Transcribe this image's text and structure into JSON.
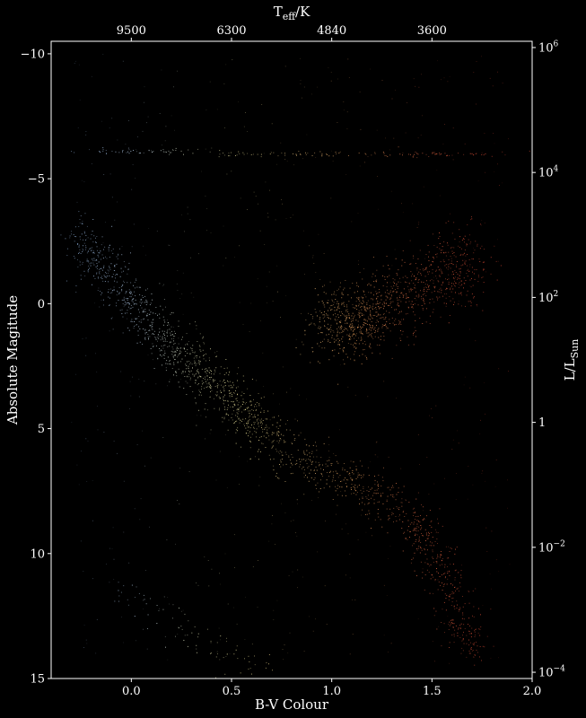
{
  "chart_data": {
    "type": "scatter",
    "title": "",
    "xlabel": "B-V Colour",
    "ylabel": "Absolute Magitude",
    "top_xlabel": "T",
    "top_xlabel_sub": "eff",
    "top_xlabel_suffix": "/K",
    "right_ylabel": "L/L",
    "right_ylabel_sub": "Sun",
    "xlim": [
      -0.4,
      2.0
    ],
    "ylim": [
      15,
      -10.5
    ],
    "y_inverted": true,
    "grid": false,
    "background": "#000000",
    "x_ticks": [
      {
        "value": 0.0,
        "label": "0.0"
      },
      {
        "value": 0.5,
        "label": "0.5"
      },
      {
        "value": 1.0,
        "label": "1.0"
      },
      {
        "value": 1.5,
        "label": "1.5"
      },
      {
        "value": 2.0,
        "label": "2.0"
      }
    ],
    "y_ticks": [
      {
        "value": -10,
        "label": "−10"
      },
      {
        "value": -5,
        "label": "−5"
      },
      {
        "value": 0,
        "label": "0"
      },
      {
        "value": 5,
        "label": "5"
      },
      {
        "value": 10,
        "label": "10"
      },
      {
        "value": 15,
        "label": "15"
      }
    ],
    "top_ticks": [
      {
        "value": 0.0,
        "label": "9500"
      },
      {
        "value": 0.5,
        "label": "6300"
      },
      {
        "value": 1.0,
        "label": "4840"
      },
      {
        "value": 1.5,
        "label": "3600"
      }
    ],
    "right_ticks": [
      {
        "value": -10.25,
        "base": "10",
        "exp": "6"
      },
      {
        "value": -5.25,
        "base": "10",
        "exp": "4"
      },
      {
        "value": -0.25,
        "base": "10",
        "exp": "2"
      },
      {
        "value": 4.75,
        "base": "1",
        "exp": ""
      },
      {
        "value": 9.75,
        "base": "10",
        "exp": "−2"
      },
      {
        "value": 14.75,
        "base": "10",
        "exp": "−4"
      }
    ],
    "series_regions": [
      {
        "region": "main-sequence",
        "color": "#b8d4f0",
        "points": [
          [
            -0.25,
            -2.5
          ],
          [
            -0.2,
            -2
          ],
          [
            -0.15,
            -1.5
          ],
          [
            -0.1,
            -1
          ],
          [
            -0.05,
            -0.5
          ],
          [
            0.0,
            0
          ],
          [
            0.05,
            0.5
          ],
          [
            0.1,
            1
          ],
          [
            0.15,
            1.4
          ],
          [
            0.2,
            1.8
          ],
          [
            0.25,
            2.1
          ],
          [
            0.3,
            2.5
          ],
          [
            0.35,
            2.8
          ],
          [
            0.4,
            3.1
          ],
          [
            0.45,
            3.4
          ],
          [
            0.5,
            3.8
          ],
          [
            0.55,
            4.2
          ],
          [
            0.6,
            4.6
          ],
          [
            0.65,
            5.0
          ],
          [
            0.7,
            5.4
          ],
          [
            0.8,
            6.0
          ],
          [
            0.9,
            6.4
          ],
          [
            1.0,
            6.8
          ],
          [
            1.1,
            7.1
          ],
          [
            1.2,
            7.5
          ],
          [
            1.3,
            7.9
          ],
          [
            1.4,
            8.6
          ],
          [
            1.45,
            9.3
          ],
          [
            1.5,
            10.0
          ],
          [
            1.55,
            10.8
          ],
          [
            1.6,
            11.8
          ],
          [
            1.65,
            12.8
          ],
          [
            1.7,
            13.6
          ]
        ]
      },
      {
        "region": "red-giant-clump",
        "color": "#f0a860",
        "points": [
          [
            1.0,
            0.7
          ],
          [
            1.05,
            0.9
          ],
          [
            1.1,
            0.6
          ],
          [
            1.15,
            0.8
          ],
          [
            1.2,
            0.3
          ],
          [
            1.3,
            0.0
          ],
          [
            1.4,
            -0.5
          ],
          [
            1.5,
            -0.9
          ],
          [
            1.6,
            -1.3
          ],
          [
            1.65,
            -1.8
          ]
        ]
      },
      {
        "region": "white-dwarfs",
        "color": "#c8c8c8",
        "points": [
          [
            0.0,
            11.5
          ],
          [
            0.1,
            12.3
          ],
          [
            0.2,
            12.8
          ],
          [
            0.3,
            13.3
          ],
          [
            0.4,
            13.8
          ],
          [
            0.5,
            14.2
          ],
          [
            0.6,
            14.5
          ]
        ]
      },
      {
        "region": "supergiants",
        "color": "#d0b090",
        "points": [
          [
            -0.1,
            -6.1
          ],
          [
            0.2,
            -6.1
          ],
          [
            0.6,
            -6.0
          ],
          [
            1.0,
            -6.0
          ],
          [
            1.4,
            -6.0
          ],
          [
            1.7,
            -6.0
          ]
        ]
      }
    ]
  }
}
